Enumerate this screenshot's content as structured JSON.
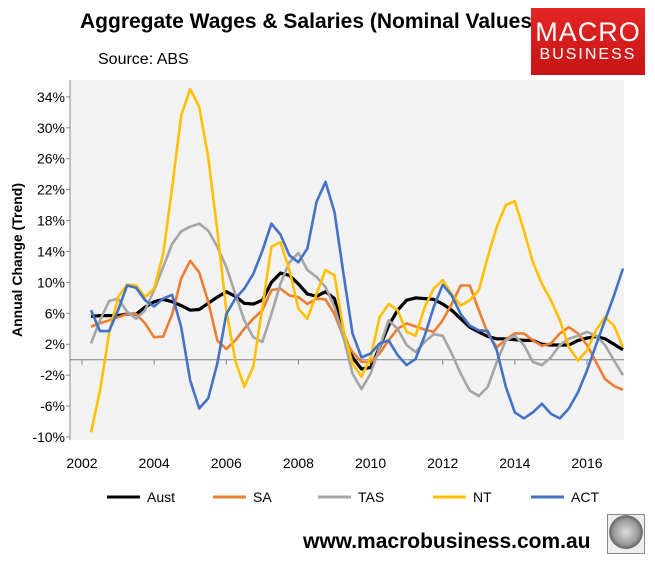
{
  "chart_data": {
    "type": "line",
    "title": "Aggregate Wages & Salaries (Nominal Values)",
    "subtitle": "Source: ABS",
    "xlabel": "",
    "ylabel": "Annual Change (Trend)",
    "xlim": [
      2002,
      2017
    ],
    "ylim": [
      -10,
      34
    ],
    "yticks": [
      "-10%",
      "-6%",
      "-2%",
      "2%",
      "6%",
      "10%",
      "14%",
      "18%",
      "22%",
      "26%",
      "30%",
      "34%"
    ],
    "xticks": [
      "2002",
      "2004",
      "2006",
      "2008",
      "2010",
      "2012",
      "2014",
      "2016"
    ],
    "grid": false,
    "legend": "bottom",
    "x_start": 2002.25,
    "x_step": 0.25,
    "series": [
      {
        "name": "Aust",
        "color": "#000000",
        "values": [
          5.6,
          5.7,
          5.7,
          5.7,
          5.9,
          5.9,
          6.8,
          7.5,
          7.8,
          7.5,
          7,
          6.4,
          6.5,
          7.3,
          8.1,
          8.8,
          8.2,
          7.3,
          7.2,
          7.7,
          10,
          11.2,
          10.9,
          9.8,
          8.5,
          8.2,
          8.8,
          7.9,
          3.4,
          0.3,
          -1.2,
          -1,
          1.6,
          4.4,
          6.4,
          7.7,
          8,
          7.9,
          7.8,
          7.2,
          6.4,
          5.3,
          4.2,
          3.6,
          3,
          2.7,
          2.7,
          2.6,
          2.5,
          2.5,
          2,
          1.9,
          1.9,
          1.9,
          2.5,
          2.8,
          3,
          2.7,
          2,
          1.3
        ]
      },
      {
        "name": "SA",
        "color": "#ed7d31",
        "values": [
          4.3,
          4.7,
          5.1,
          5.5,
          5.9,
          5.9,
          4.7,
          2.9,
          3,
          5.9,
          10.5,
          12.8,
          11.3,
          7.5,
          2.5,
          1.4,
          2.5,
          4,
          5.3,
          6.4,
          9,
          9.2,
          8.3,
          8.1,
          7.2,
          7.9,
          7.8,
          5.9,
          2.9,
          1,
          -0.3,
          -0.3,
          0.8,
          2.5,
          4,
          4.7,
          4.3,
          3.9,
          3.6,
          5.1,
          7.2,
          9.6,
          9.6,
          6.4,
          3.4,
          1.6,
          2.6,
          3.4,
          3.4,
          2.5,
          1.8,
          2.1,
          3.4,
          4.2,
          3.4,
          1.9,
          -0.3,
          -2.5,
          -3.4,
          -3.9
        ]
      },
      {
        "name": "TAS",
        "color": "#a5a5a5",
        "values": [
          2.1,
          5.1,
          7.6,
          7.9,
          6.2,
          5.3,
          6.4,
          9,
          12,
          15,
          16.6,
          17.2,
          17.6,
          16.7,
          14.6,
          12,
          8.5,
          5.1,
          2.9,
          2.3,
          5.9,
          9.8,
          12.6,
          13.8,
          11.6,
          10.7,
          9.4,
          6.8,
          2.9,
          -1.8,
          -3.8,
          -1.8,
          1.6,
          5.1,
          4,
          1.9,
          1,
          2.3,
          3.3,
          3.1,
          0.8,
          -1.8,
          -4,
          -4.7,
          -3.5,
          -0.3,
          2.5,
          3.1,
          1.9,
          -0.3,
          -0.7,
          0.3,
          1.9,
          2.7,
          3.1,
          3.6,
          3.1,
          1.9,
          -0.1,
          -2
        ]
      },
      {
        "name": "NT",
        "color": "#ffc000",
        "values": [
          -9.4,
          -4,
          3.4,
          8.1,
          9.7,
          9.6,
          8.1,
          9.2,
          13.7,
          22.3,
          31.6,
          35,
          32.7,
          26.2,
          16.7,
          6.4,
          -0.1,
          -3.5,
          -0.9,
          6.8,
          14.6,
          15.2,
          11.6,
          6.6,
          5.3,
          8.5,
          11.6,
          10.9,
          3.8,
          -0.5,
          -2.2,
          0.3,
          5.5,
          7.2,
          6.4,
          3.6,
          3.1,
          6.8,
          9.2,
          10.3,
          8.5,
          7,
          7.7,
          9,
          13.3,
          17.2,
          20,
          20.5,
          16.7,
          12.6,
          9.8,
          7.7,
          5.1,
          1.6,
          -0.1,
          1.2,
          3.8,
          5.5,
          4.4,
          1.6
        ]
      },
      {
        "name": "ACT",
        "color": "#4472c4",
        "values": [
          6.4,
          3.7,
          3.7,
          6.4,
          9.6,
          9.3,
          7.7,
          6.9,
          7.9,
          8.4,
          4.2,
          -2.7,
          -6.3,
          -5,
          -0.5,
          5.9,
          7.9,
          9.2,
          11.1,
          14.1,
          17.6,
          16.2,
          13.5,
          12.6,
          14.4,
          20.4,
          23,
          19.1,
          11.1,
          3.4,
          0.3,
          0.8,
          2.1,
          2.5,
          0.6,
          -0.7,
          0.1,
          3.1,
          6.8,
          9.7,
          8.3,
          5.9,
          4.4,
          3.8,
          3.7,
          1.2,
          -3.5,
          -6.8,
          -7.6,
          -6.8,
          -5.7,
          -7,
          -7.6,
          -6.3,
          -4.2,
          -1.4,
          1.9,
          5.1,
          8.3,
          11.8
        ]
      }
    ]
  },
  "logo": {
    "line1": "MACRO",
    "line2": "BUSINESS"
  },
  "footer": {
    "website": "www.macrobusiness.com.au"
  }
}
